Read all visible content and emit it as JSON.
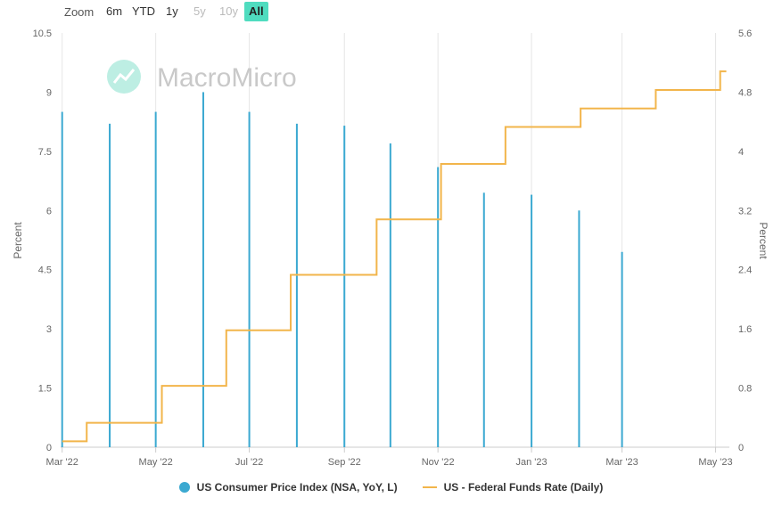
{
  "zoom": {
    "label": "Zoom",
    "buttons": [
      {
        "label": "6m",
        "state": "normal"
      },
      {
        "label": "YTD",
        "state": "normal"
      },
      {
        "label": "1y",
        "state": "normal"
      },
      {
        "label": "5y",
        "state": "disabled"
      },
      {
        "label": "10y",
        "state": "disabled"
      },
      {
        "label": "All",
        "state": "active"
      }
    ]
  },
  "watermark": "MacroMicro",
  "colors": {
    "cpi": "#3ba9d1",
    "ffr": "#f2b54b",
    "grid": "#e6e6e6",
    "accent": "#4fdcbf"
  },
  "chart_data": {
    "type": "bar",
    "x_axis": {
      "type": "date",
      "range": [
        "2022-02-28",
        "2023-05-10"
      ],
      "tick_labels": [
        "Mar '22",
        "May '22",
        "Jul '22",
        "Sep '22",
        "Nov '22",
        "Jan '23",
        "Mar '23",
        "May '23"
      ],
      "tick_dates": [
        "2022-03-01",
        "2022-05-01",
        "2022-07-01",
        "2022-09-01",
        "2022-11-01",
        "2023-01-01",
        "2023-03-01",
        "2023-05-01"
      ]
    },
    "y_left": {
      "label": "Percent",
      "range": [
        0,
        10.5
      ],
      "ticks": [
        "0",
        "1.5",
        "3",
        "4.5",
        "6",
        "7.5",
        "9",
        "10.5"
      ]
    },
    "y_right": {
      "label": "Percent",
      "range": [
        0,
        5.6
      ],
      "ticks": [
        "0",
        "0.8",
        "1.6",
        "2.4",
        "3.2",
        "4",
        "4.8",
        "5.6"
      ]
    },
    "grid": "vertical",
    "legend_position": "bottom-center",
    "series": [
      {
        "name": "US Consumer Price Index (NSA, YoY, L)",
        "type": "bar",
        "axis": "left",
        "points": [
          {
            "x": "2022-03-01",
            "y": 8.5
          },
          {
            "x": "2022-04-01",
            "y": 8.2
          },
          {
            "x": "2022-05-01",
            "y": 8.5
          },
          {
            "x": "2022-06-01",
            "y": 9.0
          },
          {
            "x": "2022-07-01",
            "y": 8.5
          },
          {
            "x": "2022-08-01",
            "y": 8.2
          },
          {
            "x": "2022-09-01",
            "y": 8.15
          },
          {
            "x": "2022-10-01",
            "y": 7.7
          },
          {
            "x": "2022-11-01",
            "y": 7.1
          },
          {
            "x": "2022-12-01",
            "y": 6.45
          },
          {
            "x": "2023-01-01",
            "y": 6.4
          },
          {
            "x": "2023-02-01",
            "y": 6.0
          },
          {
            "x": "2023-03-01",
            "y": 4.95
          }
        ]
      },
      {
        "name": "US - Federal Funds Rate (Daily)",
        "type": "line",
        "step": true,
        "axis": "right",
        "points": [
          {
            "x": "2022-03-01",
            "y": 0.08
          },
          {
            "x": "2022-03-17",
            "y": 0.33
          },
          {
            "x": "2022-05-05",
            "y": 0.83
          },
          {
            "x": "2022-06-16",
            "y": 1.58
          },
          {
            "x": "2022-07-28",
            "y": 2.33
          },
          {
            "x": "2022-09-22",
            "y": 3.08
          },
          {
            "x": "2022-11-03",
            "y": 3.83
          },
          {
            "x": "2022-12-15",
            "y": 4.33
          },
          {
            "x": "2023-02-02",
            "y": 4.58
          },
          {
            "x": "2023-03-23",
            "y": 4.83
          },
          {
            "x": "2023-05-04",
            "y": 5.08
          },
          {
            "x": "2023-05-08",
            "y": 5.08
          }
        ]
      }
    ]
  }
}
